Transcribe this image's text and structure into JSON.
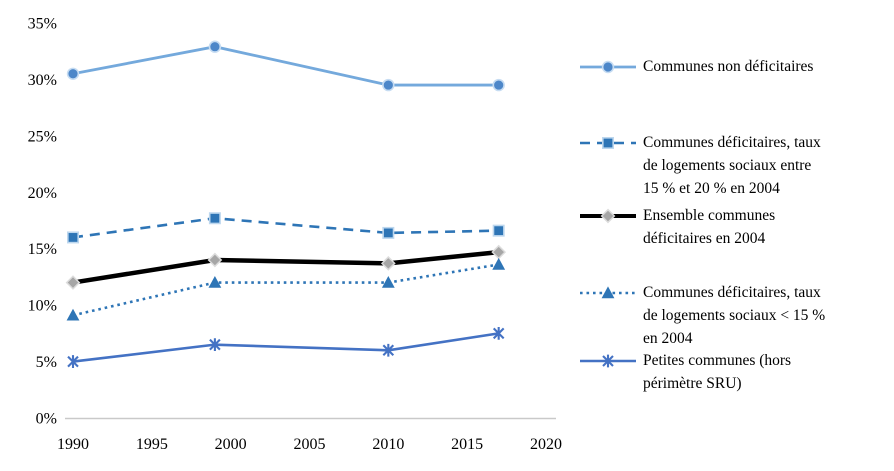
{
  "chart_data": {
    "type": "line",
    "title": "",
    "xlabel": "",
    "ylabel": "",
    "x": [
      1990,
      1999,
      2010,
      2017
    ],
    "x_ticks": [
      1990,
      1995,
      2000,
      2005,
      2010,
      2015,
      2020
    ],
    "y_ticks": [
      {
        "value": 0,
        "label": "0%"
      },
      {
        "value": 5,
        "label": "5%"
      },
      {
        "value": 10,
        "label": "10%"
      },
      {
        "value": 15,
        "label": "15%"
      },
      {
        "value": 20,
        "label": "20%"
      },
      {
        "value": 25,
        "label": "25%"
      },
      {
        "value": 30,
        "label": "30%"
      },
      {
        "value": 35,
        "label": "35%"
      }
    ],
    "xlim": [
      1990,
      2020
    ],
    "ylim": [
      0,
      35
    ],
    "grid": false,
    "legend_position": "right",
    "series": [
      {
        "key": "communes-non-deficitaires",
        "name": "Communes non déficitaires",
        "legend_label": "Communes non déficitaires",
        "values": [
          30.5,
          32.9,
          29.5,
          29.5
        ],
        "color": "#74A9DC",
        "marker": "circle",
        "marker_fill": "#4D87C9",
        "line_style": "solid",
        "line_width": 2.8
      },
      {
        "key": "communes-deficitaires-15-20",
        "name": "Communes déficitaires, taux de logements sociaux entre 15 % et 20 % en 2004",
        "legend_label": "Communes déficitaires, taux\nde logements sociaux entre\n15 % et 20 % en 2004",
        "values": [
          16,
          17.7,
          16.4,
          16.6
        ],
        "color": "#2E75B6",
        "marker": "square",
        "marker_fill": "#2E75B6",
        "line_style": "dashed",
        "line_width": 2.6
      },
      {
        "key": "ensemble-communes-deficitaires",
        "name": "Ensemble communes déficitaires en 2004",
        "legend_label": "Ensemble communes\ndéficitaires en 2004",
        "values": [
          12,
          14,
          13.7,
          14.7
        ],
        "color": "#000000",
        "marker": "diamond",
        "marker_fill": "#A6A6A6",
        "line_style": "solid",
        "line_width": 4.5
      },
      {
        "key": "communes-deficitaires-moins-15",
        "name": "Communes déficitaires, taux de logements sociaux < 15 % en 2004",
        "legend_label": "Communes déficitaires, taux\nde logements sociaux < 15 %\nen 2004",
        "values": [
          9.1,
          12,
          12,
          13.6
        ],
        "color": "#2E75B6",
        "marker": "triangle",
        "marker_fill": "#2E75B6",
        "line_style": "dotted",
        "line_width": 2.6
      },
      {
        "key": "petites-communes-hors-sru",
        "name": "Petites communes (hors périmètre SRU)",
        "legend_label": "Petites communes (hors\npérimètre SRU)",
        "values": [
          5,
          6.5,
          6,
          7.5
        ],
        "color": "#4472C4",
        "marker": "asterisk",
        "marker_fill": "#4472C4",
        "line_style": "solid",
        "line_width": 2.6
      }
    ]
  },
  "axis_color": "#C9C9C9",
  "text_color": "#000000"
}
